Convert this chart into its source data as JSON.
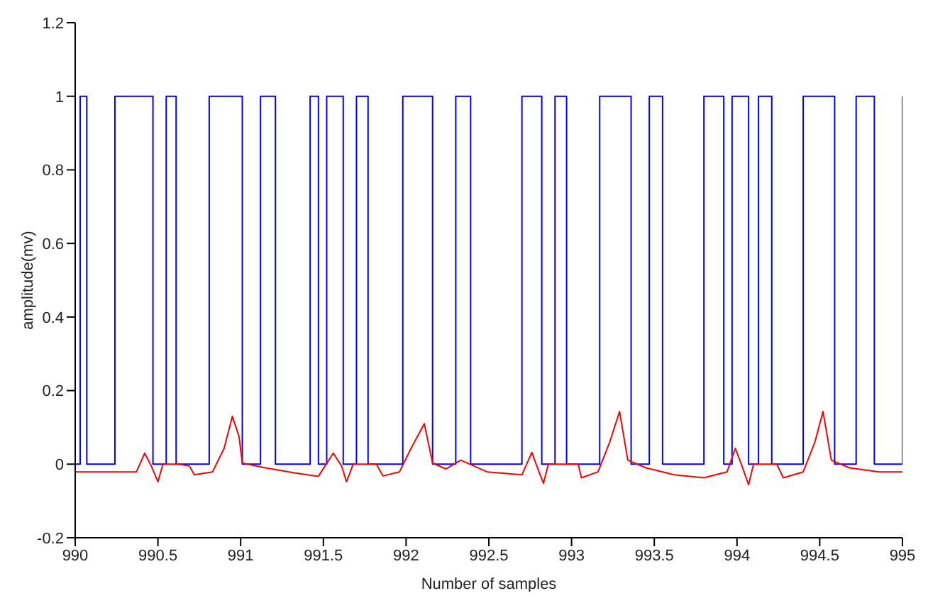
{
  "chart_data": {
    "type": "line",
    "xlabel": "Number of samples",
    "ylabel": "amplitude(mv)",
    "xlim": [
      990,
      995
    ],
    "ylim": [
      -0.2,
      1.2
    ],
    "xticks": [
      990,
      990.5,
      991,
      991.5,
      992,
      992.5,
      993,
      993.5,
      994,
      994.5,
      995
    ],
    "yticks": [
      -0.2,
      0,
      0.2,
      0.4,
      0.6,
      0.8,
      1,
      1.2
    ],
    "grid": false,
    "legend": false,
    "series": [
      {
        "type": "step",
        "color": "#0000ff",
        "x": [
          990,
          990.03,
          990.07,
          990.24,
          990.47,
          990.55,
          990.61,
          990.81,
          991.01,
          991.12,
          991.21,
          991.42,
          991.47,
          991.52,
          991.62,
          991.7,
          991.77,
          991.98,
          992.16,
          992.3,
          992.39,
          992.7,
          992.82,
          992.9,
          992.97,
          993.17,
          993.36,
          993.47,
          993.55,
          993.8,
          993.92,
          993.97,
          994.07,
          994.13,
          994.21,
          994.4,
          994.59,
          994.72,
          994.83,
          995
        ],
        "values": [
          0,
          1,
          0,
          1,
          0,
          1,
          0,
          1,
          0,
          1,
          0,
          1,
          0,
          1,
          0,
          1,
          0,
          1,
          0,
          1,
          0,
          1,
          0,
          1,
          0,
          1,
          0,
          1,
          0,
          1,
          0,
          1,
          0,
          1,
          0,
          1,
          0,
          1,
          0,
          1
        ]
      },
      {
        "type": "line",
        "color": "#ff0000",
        "x": [
          990,
          990.37,
          990.42,
          990.46,
          990.5,
          990.53,
          990.62,
          990.69,
          990.72,
          990.83,
          990.9,
          990.95,
          990.99,
          991.01,
          991.15,
          991.33,
          991.47,
          991.56,
          991.61,
          991.64,
          991.68,
          991.82,
          991.86,
          991.96,
          992.03,
          992.11,
          992.16,
          992.24,
          992.33,
          992.49,
          992.7,
          992.76,
          992.79,
          992.83,
          992.86,
          993.04,
          993.06,
          993.16,
          993.23,
          993.29,
          993.34,
          993.45,
          993.62,
          993.8,
          993.94,
          993.99,
          994.03,
          994.07,
          994.1,
          994.24,
          994.28,
          994.4,
          994.47,
          994.52,
          994.57,
          994.68,
          994.86,
          995
        ],
        "values": [
          -0.021,
          -0.021,
          0.03,
          -0.005,
          -0.048,
          0,
          0,
          -0.005,
          -0.029,
          -0.021,
          0.043,
          0.13,
          0.075,
          0.003,
          -0.01,
          -0.024,
          -0.033,
          0.03,
          -0.005,
          -0.048,
          0,
          0,
          -0.032,
          -0.021,
          0.043,
          0.11,
          0.003,
          -0.013,
          0.011,
          -0.021,
          -0.029,
          0.032,
          -0.005,
          -0.052,
          0,
          0,
          -0.037,
          -0.021,
          0.059,
          0.143,
          0.011,
          -0.01,
          -0.029,
          -0.037,
          -0.021,
          0.043,
          -0.005,
          -0.056,
          0,
          0,
          -0.037,
          -0.021,
          0.059,
          0.143,
          0.011,
          -0.01,
          -0.021,
          -0.021
        ]
      }
    ]
  }
}
